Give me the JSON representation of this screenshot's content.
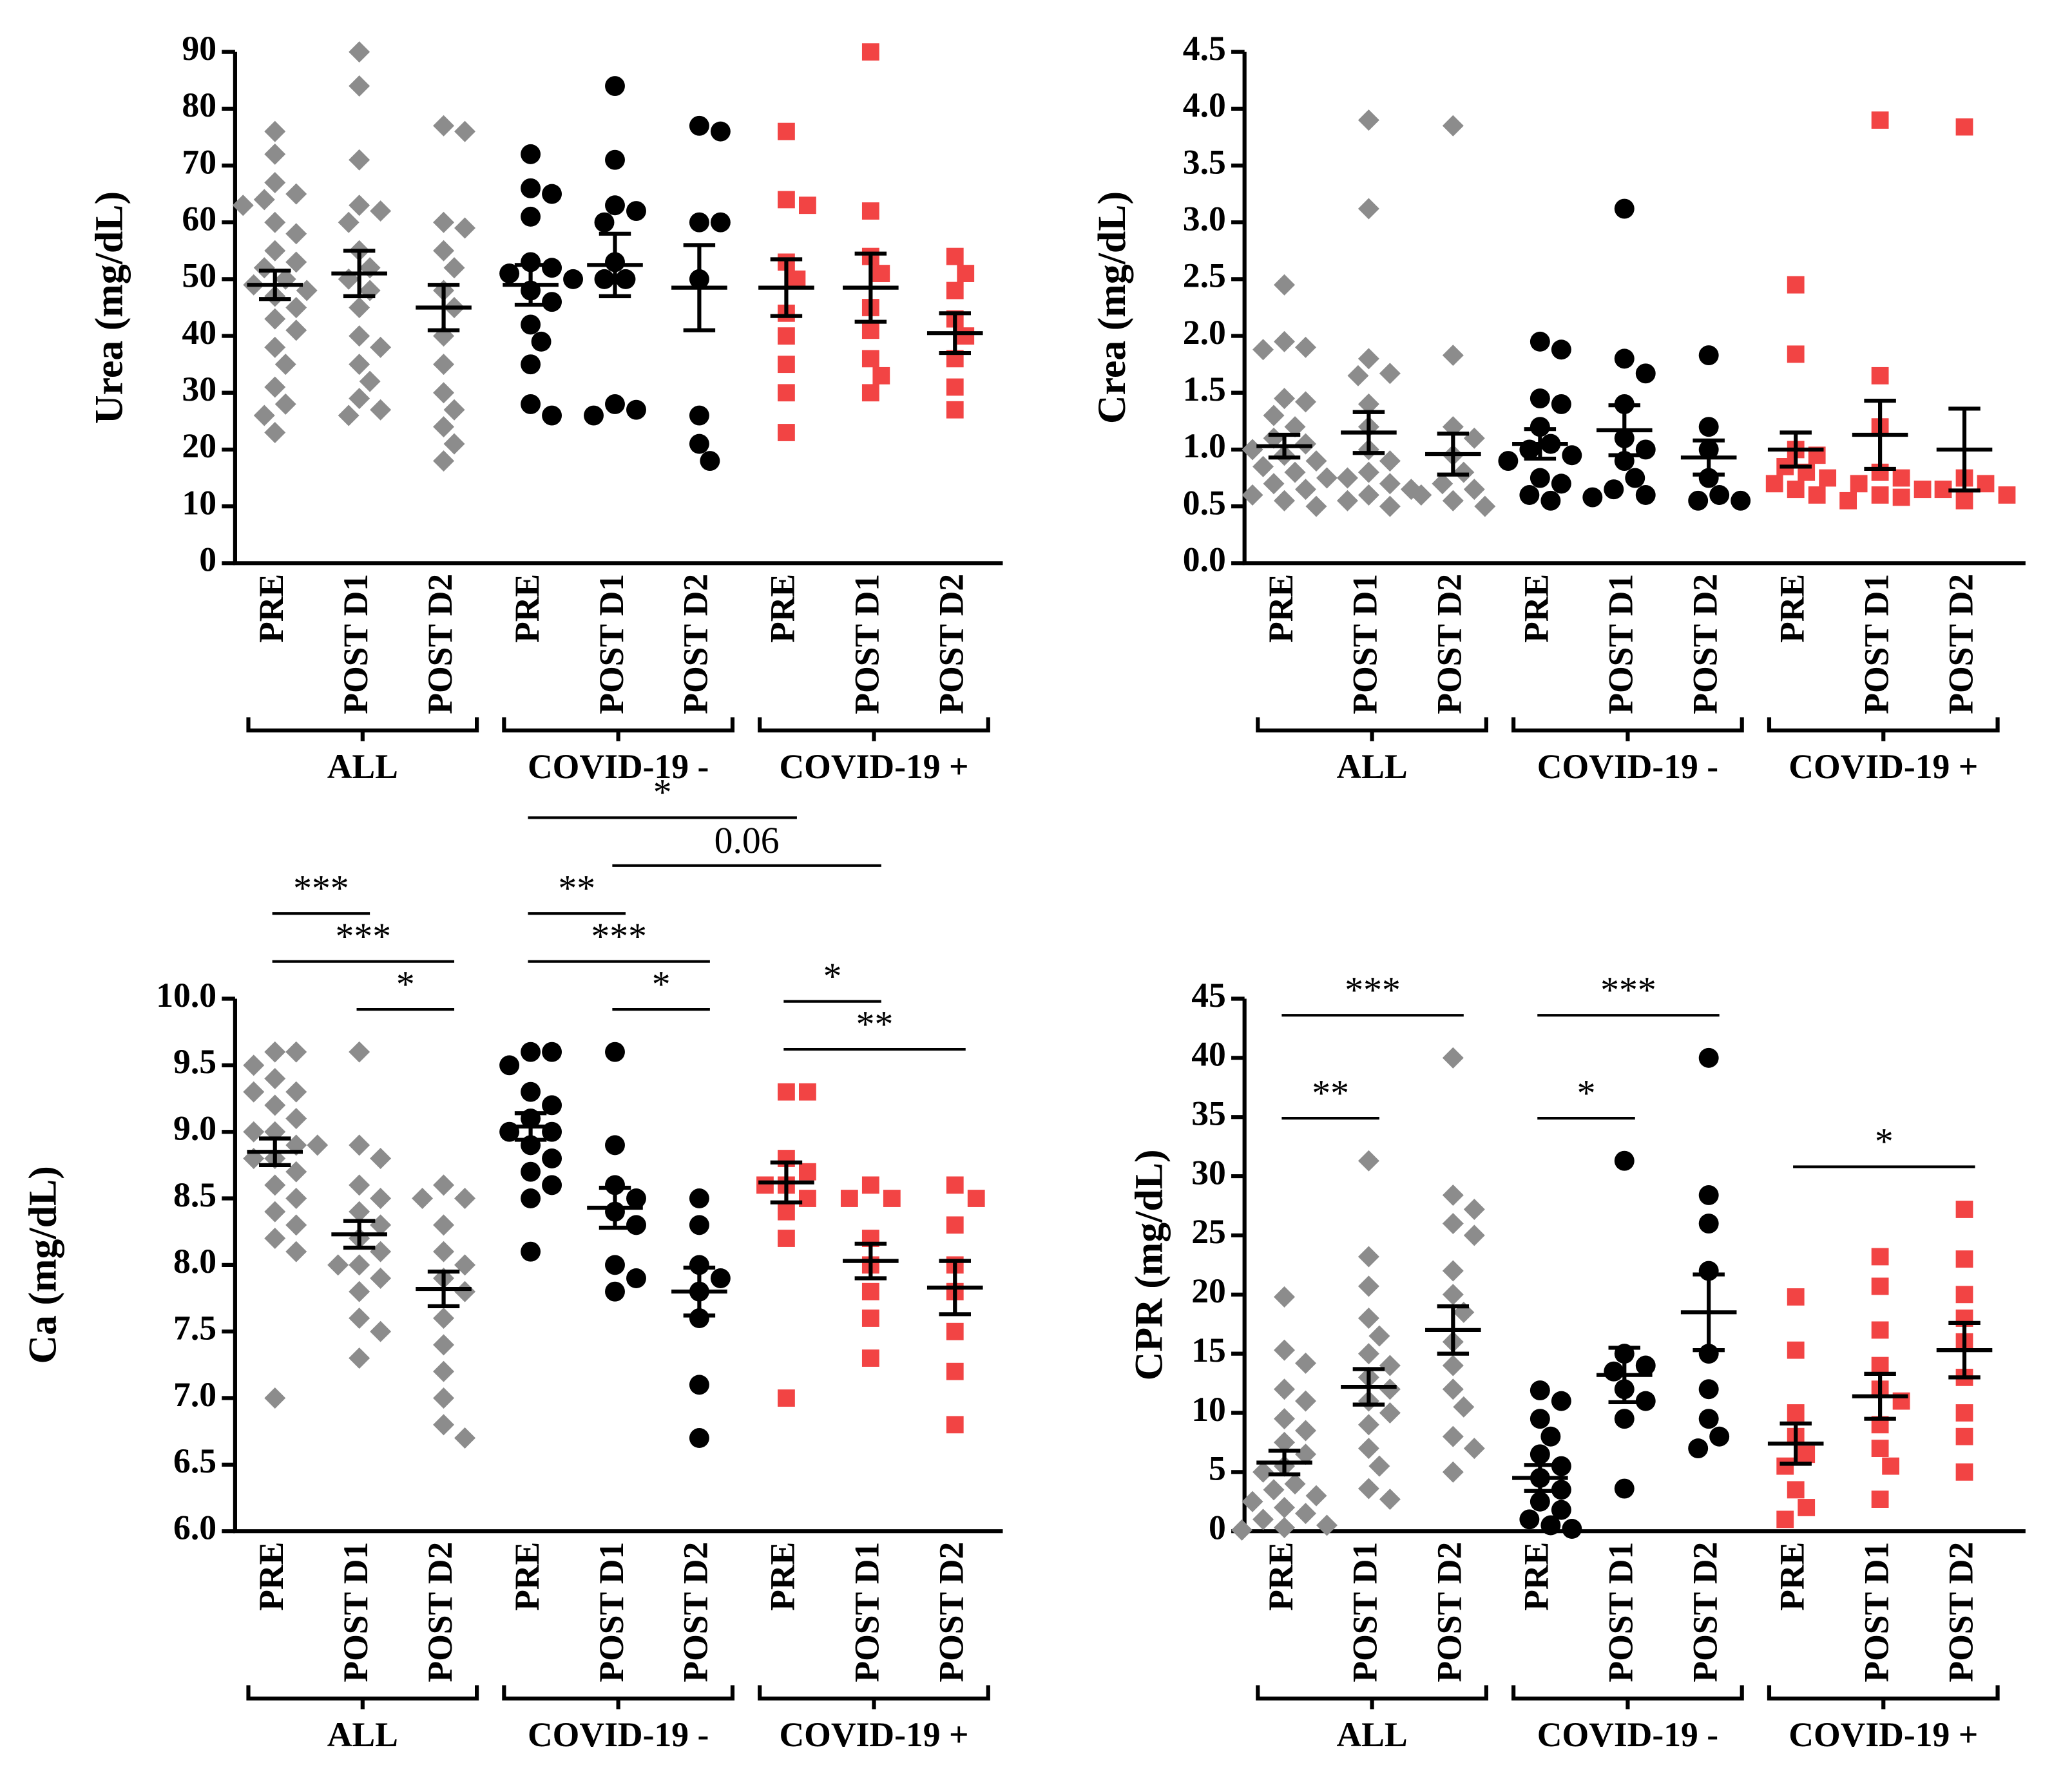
{
  "chart_data": [
    {
      "type": "dotplot",
      "y_label": "Urea (mg/dL)",
      "ylim": [
        0,
        90
      ],
      "yticks": [
        0,
        10,
        20,
        30,
        40,
        50,
        60,
        70,
        80,
        90
      ],
      "groups": [
        {
          "name": "ALL",
          "color": "#8c8c8c",
          "marker": "diamond",
          "categories": [
            "PRE",
            "POST D1",
            "POST D2"
          ],
          "points": [
            [
              76,
              72,
              67,
              65,
              64,
              63,
              60,
              58,
              55,
              53,
              52,
              50,
              49,
              48,
              47,
              45,
              43,
              41,
              38,
              35,
              31,
              28,
              26,
              23
            ],
            [
              90,
              84,
              71,
              63,
              62,
              60,
              55,
              52,
              50,
              48,
              45,
              40,
              38,
              35,
              32,
              29,
              27,
              26
            ],
            [
              77,
              76,
              60,
              59,
              55,
              52,
              48,
              45,
              40,
              35,
              30,
              27,
              24,
              21,
              18
            ]
          ],
          "mean": [
            49,
            51,
            45
          ],
          "sem": [
            2.5,
            4,
            4
          ]
        },
        {
          "name": "COVID-19 -",
          "color": "#000000",
          "marker": "circle",
          "categories": [
            "PRE",
            "POST D1",
            "POST D2"
          ],
          "points": [
            [
              72,
              66,
              65,
              61,
              53,
              52,
              51,
              50,
              48,
              46,
              42,
              39,
              35,
              28,
              26
            ],
            [
              84,
              71,
              63,
              62,
              60,
              53,
              50,
              50,
              28,
              27,
              26
            ],
            [
              77,
              76,
              60,
              60,
              50,
              26,
              21,
              18
            ]
          ],
          "mean": [
            49,
            52.5,
            48.5
          ],
          "sem": [
            3.5,
            5.5,
            7.5
          ]
        },
        {
          "name": "COVID-19 +",
          "color": "#f24444",
          "marker": "square",
          "categories": [
            "PRE",
            "POST D1",
            "POST D2"
          ],
          "points": [
            [
              76,
              64,
              63,
              53,
              50,
              44,
              40,
              35,
              30,
              23
            ],
            [
              90,
              62,
              54,
              51,
              45,
              41,
              36,
              33,
              30
            ],
            [
              54,
              51,
              48,
              43,
              40,
              36,
              31,
              27
            ]
          ],
          "mean": [
            48.5,
            48.5,
            40.5
          ],
          "sem": [
            5,
            6,
            3.5
          ]
        }
      ],
      "comparisons": []
    },
    {
      "type": "dotplot",
      "y_label": "Crea (mg/dL)",
      "ylim": [
        0,
        4.5
      ],
      "yticks": [
        {
          "value": 0,
          "label": "0.0"
        },
        0.5,
        {
          "value": 1,
          "label": "1.0"
        },
        1.5,
        {
          "value": 2,
          "label": "2.0"
        },
        2.5,
        {
          "value": 3,
          "label": "3.0"
        },
        3.5,
        {
          "value": 4,
          "label": "4.0"
        },
        4.5
      ],
      "groups": [
        {
          "name": "ALL",
          "color": "#8c8c8c",
          "marker": "diamond",
          "categories": [
            "PRE",
            "POST D1",
            "POST D2"
          ],
          "points": [
            [
              2.45,
              1.95,
              1.9,
              1.88,
              1.45,
              1.42,
              1.3,
              1.2,
              1.1,
              1.05,
              1.0,
              0.95,
              0.9,
              0.85,
              0.8,
              0.75,
              0.7,
              0.65,
              0.6,
              0.55,
              0.5
            ],
            [
              3.9,
              3.12,
              1.8,
              1.67,
              1.65,
              1.4,
              1.2,
              1.0,
              0.9,
              0.8,
              0.75,
              0.7,
              0.65,
              0.6,
              0.55,
              0.5
            ],
            [
              3.85,
              1.83,
              1.2,
              1.1,
              0.95,
              0.8,
              0.7,
              0.65,
              0.6,
              0.55,
              0.5
            ]
          ],
          "mean": [
            1.03,
            1.15,
            0.96
          ],
          "sem": [
            0.1,
            0.18,
            0.18
          ]
        },
        {
          "name": "COVID-19 -",
          "color": "#000000",
          "marker": "circle",
          "categories": [
            "PRE",
            "POST D1",
            "POST D2"
          ],
          "points": [
            [
              1.95,
              1.88,
              1.45,
              1.4,
              1.2,
              1.05,
              1.0,
              0.95,
              0.9,
              0.75,
              0.7,
              0.6,
              0.55
            ],
            [
              3.12,
              1.8,
              1.67,
              1.4,
              1.1,
              1.0,
              0.9,
              0.75,
              0.65,
              0.6,
              0.58
            ],
            [
              1.83,
              1.2,
              1.0,
              0.75,
              0.6,
              0.55,
              0.55
            ]
          ],
          "mean": [
            1.05,
            1.17,
            0.93
          ],
          "sem": [
            0.13,
            0.22,
            0.15
          ]
        },
        {
          "name": "COVID-19 +",
          "color": "#f24444",
          "marker": "square",
          "categories": [
            "PRE",
            "POST D1",
            "POST D2"
          ],
          "points": [
            [
              2.45,
              1.84,
              1.0,
              0.95,
              0.85,
              0.8,
              0.75,
              0.7,
              0.65,
              0.6
            ],
            [
              3.9,
              1.65,
              1.2,
              0.8,
              0.75,
              0.7,
              0.65,
              0.6,
              0.58,
              0.55
            ],
            [
              3.84,
              0.75,
              0.7,
              0.65,
              0.6,
              0.55
            ]
          ],
          "mean": [
            1.0,
            1.13,
            1.0
          ],
          "sem": [
            0.15,
            0.3,
            0.36
          ]
        }
      ],
      "comparisons": []
    },
    {
      "type": "dotplot",
      "y_label": "Ca (mg/dL)",
      "ylim": [
        6,
        10
      ],
      "yticks": [
        {
          "value": 6,
          "label": "6.0"
        },
        6.5,
        {
          "value": 7,
          "label": "7.0"
        },
        7.5,
        {
          "value": 8,
          "label": "8.0"
        },
        8.5,
        {
          "value": 9,
          "label": "9.0"
        },
        9.5,
        {
          "value": 10,
          "label": "10.0"
        }
      ],
      "groups": [
        {
          "name": "ALL",
          "color": "#8c8c8c",
          "marker": "diamond",
          "categories": [
            "PRE",
            "POST D1",
            "POST D2"
          ],
          "points": [
            [
              9.6,
              9.6,
              9.5,
              9.4,
              9.3,
              9.3,
              9.2,
              9.1,
              9.0,
              9.0,
              8.9,
              8.9,
              8.8,
              8.8,
              8.7,
              8.6,
              8.5,
              8.4,
              8.3,
              8.2,
              8.1,
              7.0
            ],
            [
              9.6,
              8.9,
              8.8,
              8.6,
              8.5,
              8.4,
              8.3,
              8.2,
              8.1,
              8.0,
              8.0,
              7.9,
              7.8,
              7.6,
              7.5,
              7.3
            ],
            [
              8.6,
              8.5,
              8.5,
              8.3,
              8.1,
              8.0,
              7.9,
              7.8,
              7.6,
              7.4,
              7.2,
              7.0,
              6.8,
              6.7
            ]
          ],
          "mean": [
            8.85,
            8.23,
            7.82
          ],
          "sem": [
            0.1,
            0.1,
            0.13
          ]
        },
        {
          "name": "COVID-19 -",
          "color": "#000000",
          "marker": "circle",
          "categories": [
            "PRE",
            "POST D1",
            "POST D2"
          ],
          "points": [
            [
              9.6,
              9.6,
              9.5,
              9.3,
              9.2,
              9.1,
              9.0,
              9.0,
              8.9,
              8.8,
              8.7,
              8.6,
              8.5,
              8.1
            ],
            [
              9.6,
              8.9,
              8.6,
              8.5,
              8.4,
              8.3,
              8.0,
              7.9,
              7.8
            ],
            [
              8.5,
              8.3,
              8.0,
              7.9,
              7.8,
              7.6,
              7.1,
              6.7
            ]
          ],
          "mean": [
            9.04,
            8.43,
            7.8
          ],
          "sem": [
            0.1,
            0.15,
            0.18
          ]
        },
        {
          "name": "COVID-19 +",
          "color": "#f24444",
          "marker": "square",
          "categories": [
            "PRE",
            "POST D1",
            "POST D2"
          ],
          "points": [
            [
              9.3,
              9.3,
              8.8,
              8.7,
              8.6,
              8.6,
              8.5,
              8.4,
              8.2,
              7.0
            ],
            [
              8.6,
              8.5,
              8.5,
              8.2,
              8.0,
              7.8,
              7.6,
              7.3
            ],
            [
              8.6,
              8.5,
              8.3,
              8.0,
              7.8,
              7.5,
              7.2,
              6.8
            ]
          ],
          "mean": [
            8.62,
            8.03,
            7.83
          ],
          "sem": [
            0.15,
            0.13,
            0.2
          ]
        }
      ],
      "comparisons": [
        {
          "pair": [
            1,
            2
          ],
          "label": "*"
        },
        {
          "pair": [
            4,
            5
          ],
          "label": "*"
        },
        {
          "pair": [
            6,
            8
          ],
          "label": "**"
        },
        {
          "pair": [
            0,
            2
          ],
          "label": "***"
        },
        {
          "pair": [
            3,
            5
          ],
          "label": "***"
        },
        {
          "pair": [
            6,
            7
          ],
          "label": "*"
        },
        {
          "pair": [
            0,
            1
          ],
          "label": "***"
        },
        {
          "pair": [
            3,
            4
          ],
          "label": "**"
        },
        {
          "pair": [
            4,
            7
          ],
          "label": "0.06"
        },
        {
          "pair": [
            3,
            6
          ],
          "label": "*"
        }
      ]
    },
    {
      "type": "dotplot",
      "y_label": "CPR (mg/dL)",
      "ylim": [
        0,
        45
      ],
      "yticks": [
        0,
        5,
        10,
        15,
        20,
        25,
        30,
        35,
        40,
        45
      ],
      "groups": [
        {
          "name": "ALL",
          "color": "#8c8c8c",
          "marker": "diamond",
          "categories": [
            "PRE",
            "POST D1",
            "POST D2"
          ],
          "points": [
            [
              19.8,
              15.3,
              14.2,
              12.0,
              11.0,
              9.5,
              8.5,
              7.5,
              6.5,
              5.5,
              5.0,
              4.0,
              3.5,
              3.0,
              2.5,
              2.0,
              1.5,
              1.0,
              0.5,
              0.3,
              0.1
            ],
            [
              31.3,
              23.2,
              20.7,
              18.0,
              16.5,
              15.0,
              14.0,
              13.0,
              12.0,
              11.0,
              10.0,
              9.0,
              7.0,
              5.5,
              3.6,
              2.7
            ],
            [
              40.0,
              28.4,
              27.2,
              26.0,
              25.0,
              22.0,
              20.0,
              18.5,
              16.0,
              14.0,
              12.0,
              10.5,
              8.0,
              7.0,
              5.0
            ]
          ],
          "mean": [
            5.8,
            12.2,
            17
          ],
          "sem": [
            1,
            1.5,
            2
          ]
        },
        {
          "name": "COVID-19 -",
          "color": "#000000",
          "marker": "circle",
          "categories": [
            "PRE",
            "POST D1",
            "POST D2"
          ],
          "points": [
            [
              11.9,
              11.0,
              9.5,
              8.0,
              6.5,
              5.5,
              4.5,
              3.5,
              2.5,
              1.8,
              1.0,
              0.5,
              0.2
            ],
            [
              31.3,
              15.0,
              14.0,
              13.5,
              12.0,
              11.0,
              9.5,
              3.6
            ],
            [
              40.0,
              28.4,
              26.0,
              22.0,
              15.0,
              12.0,
              9.5,
              8.0,
              7.0
            ]
          ],
          "mean": [
            4.5,
            13.2,
            18.5
          ],
          "sem": [
            1.1,
            2.3,
            3.2
          ]
        },
        {
          "name": "COVID-19 +",
          "color": "#f24444",
          "marker": "square",
          "categories": [
            "PRE",
            "POST D1",
            "POST D2"
          ],
          "points": [
            [
              19.8,
              15.3,
              10.0,
              8.0,
              6.5,
              5.5,
              3.5,
              2.0,
              1.0
            ],
            [
              23.2,
              20.7,
              17.0,
              14.0,
              12.0,
              11.0,
              9.0,
              7.0,
              5.5,
              2.7
            ],
            [
              27.2,
              23.0,
              20.0,
              18.0,
              16.0,
              13.0,
              10.0,
              8.0,
              5.0
            ]
          ],
          "mean": [
            7.4,
            11.4,
            15.3
          ],
          "sem": [
            1.7,
            1.9,
            2.3
          ]
        }
      ],
      "comparisons": [
        {
          "pair": [
            0,
            1
          ],
          "label": "**"
        },
        {
          "pair": [
            0,
            2
          ],
          "label": "***"
        },
        {
          "pair": [
            3,
            4
          ],
          "label": "*"
        },
        {
          "pair": [
            3,
            5
          ],
          "label": "***"
        },
        {
          "pair": [
            6,
            8
          ],
          "label": "*"
        }
      ]
    }
  ]
}
